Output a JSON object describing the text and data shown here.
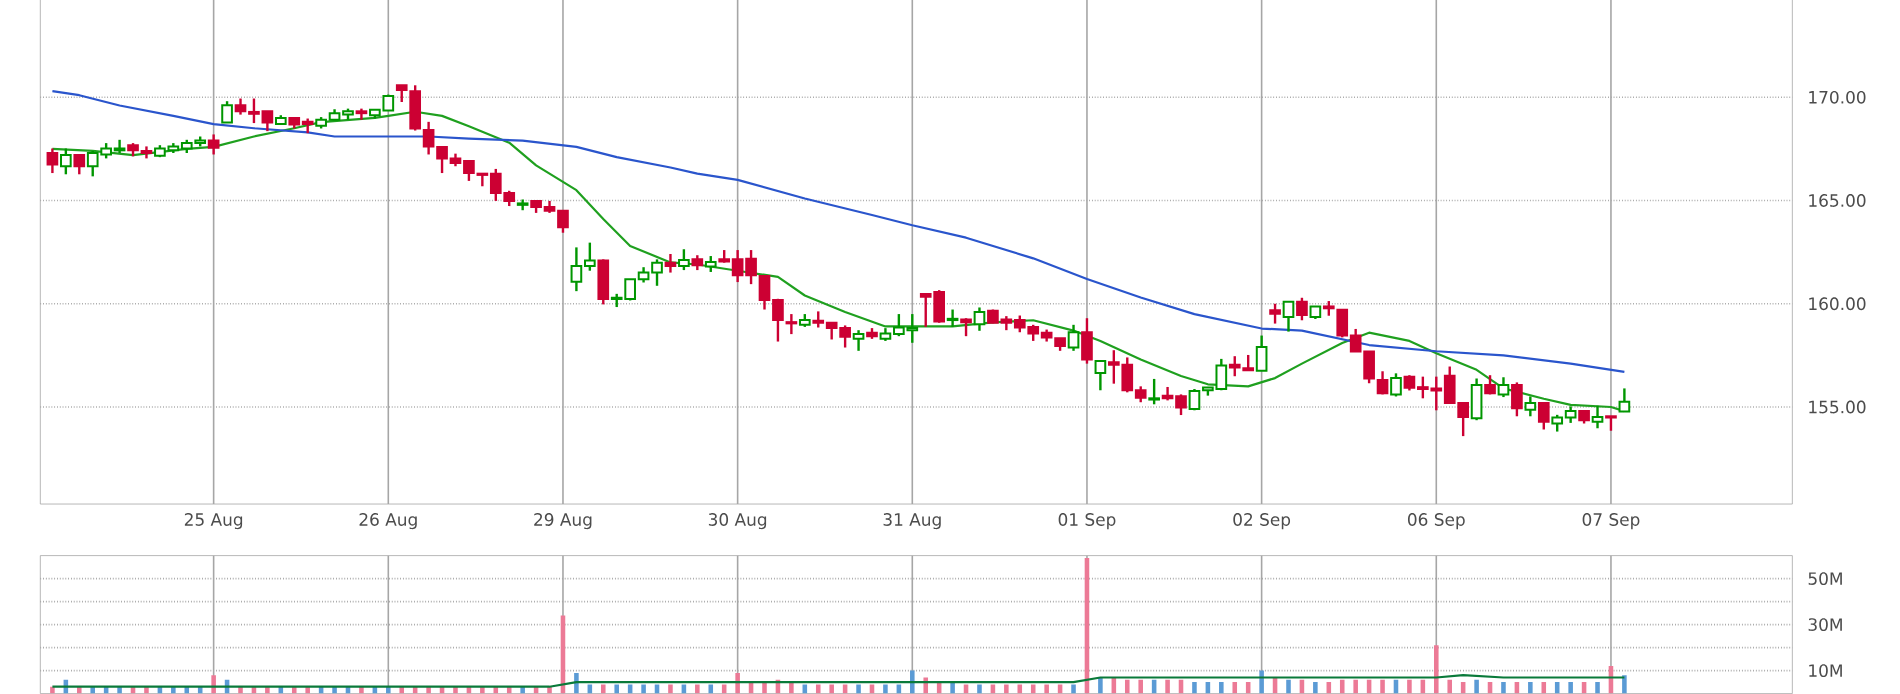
{
  "chart_data": [
    {
      "type": "candlestick",
      "categories": [
        null,
        null,
        null,
        null,
        null,
        null,
        null,
        null,
        null,
        null,
        null,
        null,
        "25 Aug",
        null,
        null,
        null,
        null,
        null,
        null,
        null,
        null,
        null,
        null,
        null,
        null,
        "26 Aug",
        null,
        null,
        null,
        null,
        null,
        null,
        null,
        null,
        null,
        null,
        null,
        null,
        "29 Aug",
        null,
        null,
        null,
        null,
        null,
        null,
        null,
        null,
        null,
        null,
        null,
        null,
        "30 Aug",
        null,
        null,
        null,
        null,
        null,
        null,
        null,
        null,
        null,
        null,
        null,
        null,
        "31 Aug",
        null,
        null,
        null,
        null,
        null,
        null,
        null,
        null,
        null,
        null,
        null,
        null,
        "01 Sep",
        null,
        null,
        null,
        null,
        null,
        null,
        null,
        null,
        null,
        null,
        null,
        null,
        "02 Sep",
        null,
        null,
        null,
        null,
        null,
        null,
        null,
        null,
        null,
        null,
        null,
        null,
        "06 Sep",
        null,
        null,
        null,
        null,
        null,
        null,
        null,
        null,
        null,
        null,
        null,
        null,
        "07 Sep",
        null,
        null,
        null,
        null,
        null,
        null,
        null,
        null,
        null,
        null,
        null,
        null,
        null
      ],
      "ohlc": [
        [
          167.3,
          167.52,
          166.33,
          166.75
        ],
        [
          166.66,
          167.52,
          166.27,
          167.2
        ],
        [
          167.2,
          167.2,
          166.27,
          166.66
        ],
        [
          166.66,
          167.4,
          166.17,
          167.3
        ],
        [
          167.23,
          167.78,
          167.04,
          167.52
        ],
        [
          167.43,
          167.94,
          167.3,
          167.52
        ],
        [
          167.68,
          167.78,
          167.14,
          167.43
        ],
        [
          167.4,
          167.62,
          167.04,
          167.3
        ],
        [
          167.17,
          167.68,
          167.1,
          167.52
        ],
        [
          167.43,
          167.78,
          167.3,
          167.62
        ],
        [
          167.52,
          167.94,
          167.3,
          167.78
        ],
        [
          167.78,
          168.1,
          167.62,
          167.91
        ],
        [
          167.91,
          168.2,
          167.23,
          167.56
        ],
        [
          168.78,
          169.81,
          168.78,
          169.61
        ],
        [
          169.61,
          169.94,
          169.16,
          169.32
        ],
        [
          169.29,
          169.94,
          168.75,
          169.2
        ],
        [
          169.32,
          169.32,
          168.36,
          168.78
        ],
        [
          168.71,
          169.13,
          168.71,
          169.0
        ],
        [
          169.0,
          169.0,
          168.49,
          168.68
        ],
        [
          168.81,
          168.97,
          168.26,
          168.71
        ],
        [
          168.62,
          169.04,
          168.49,
          168.91
        ],
        [
          168.91,
          169.42,
          168.91,
          169.23
        ],
        [
          169.16,
          169.45,
          168.91,
          169.32
        ],
        [
          169.32,
          169.45,
          168.91,
          169.23
        ],
        [
          169.13,
          169.39,
          168.97,
          169.39
        ],
        [
          169.36,
          170.13,
          169.36,
          170.06
        ],
        [
          170.58,
          170.58,
          169.77,
          170.35
        ],
        [
          170.29,
          170.58,
          168.39,
          168.49
        ],
        [
          168.42,
          168.81,
          167.23,
          167.62
        ],
        [
          167.59,
          167.59,
          166.33,
          167.04
        ],
        [
          167.04,
          167.27,
          166.66,
          166.82
        ],
        [
          166.91,
          166.91,
          165.95,
          166.33
        ],
        [
          166.3,
          166.3,
          165.69,
          166.24
        ],
        [
          166.3,
          166.53,
          164.98,
          165.37
        ],
        [
          165.37,
          165.47,
          164.73,
          164.98
        ],
        [
          164.79,
          165.05,
          164.53,
          164.86
        ],
        [
          164.98,
          164.98,
          164.4,
          164.69
        ],
        [
          164.69,
          164.98,
          164.4,
          164.5
        ],
        [
          164.5,
          164.5,
          163.44,
          163.7
        ],
        [
          161.06,
          162.73,
          160.61,
          161.83
        ],
        [
          161.83,
          162.96,
          161.6,
          162.09
        ],
        [
          162.09,
          162.15,
          159.97,
          160.23
        ],
        [
          160.23,
          160.48,
          159.84,
          160.29
        ],
        [
          160.23,
          161.19,
          160.16,
          161.19
        ],
        [
          161.19,
          161.77,
          161.03,
          161.51
        ],
        [
          161.51,
          162.15,
          160.87,
          161.99
        ],
        [
          161.99,
          162.41,
          161.51,
          161.83
        ],
        [
          161.83,
          162.64,
          161.63,
          162.12
        ],
        [
          162.15,
          162.35,
          161.63,
          161.86
        ],
        [
          161.8,
          162.31,
          161.54,
          162.02
        ],
        [
          162.15,
          162.6,
          161.99,
          162.05
        ],
        [
          162.15,
          162.6,
          161.05,
          161.38
        ],
        [
          162.18,
          162.6,
          160.95,
          161.38
        ],
        [
          161.34,
          161.34,
          159.72,
          160.18
        ],
        [
          160.18,
          160.24,
          158.17,
          159.21
        ],
        [
          159.11,
          159.5,
          158.53,
          159.05
        ],
        [
          158.98,
          159.5,
          158.88,
          159.21
        ],
        [
          159.18,
          159.63,
          158.85,
          159.08
        ],
        [
          159.08,
          159.08,
          158.27,
          158.82
        ],
        [
          158.82,
          158.95,
          157.88,
          158.4
        ],
        [
          158.3,
          158.72,
          157.72,
          158.53
        ],
        [
          158.59,
          158.82,
          158.3,
          158.43
        ],
        [
          158.3,
          158.82,
          158.2,
          158.56
        ],
        [
          158.53,
          159.5,
          158.43,
          158.85
        ],
        [
          158.72,
          159.5,
          158.11,
          158.82
        ],
        [
          160.47,
          160.47,
          158.88,
          160.34
        ],
        [
          160.57,
          160.66,
          159.08,
          159.14
        ],
        [
          159.21,
          159.72,
          158.88,
          159.27
        ],
        [
          159.24,
          159.3,
          158.43,
          159.11
        ],
        [
          159.01,
          159.82,
          158.69,
          159.6
        ],
        [
          159.66,
          159.72,
          159.05,
          159.08
        ],
        [
          159.24,
          159.4,
          158.72,
          159.08
        ],
        [
          159.21,
          159.43,
          158.62,
          158.85
        ],
        [
          158.88,
          158.98,
          158.2,
          158.56
        ],
        [
          158.59,
          158.75,
          158.17,
          158.37
        ],
        [
          158.33,
          158.33,
          157.72,
          157.95
        ],
        [
          157.88,
          158.98,
          157.72,
          158.62
        ],
        [
          158.62,
          159.3,
          157.1,
          157.3
        ],
        [
          156.65,
          157.23,
          155.81,
          157.23
        ],
        [
          157.17,
          157.75,
          156.13,
          157.04
        ],
        [
          157.04,
          157.4,
          155.71,
          155.81
        ],
        [
          155.81,
          156.0,
          155.23,
          155.45
        ],
        [
          155.36,
          156.36,
          155.13,
          155.42
        ],
        [
          155.55,
          155.97,
          155.32,
          155.42
        ],
        [
          155.52,
          155.61,
          154.61,
          154.97
        ],
        [
          154.9,
          155.87,
          154.84,
          155.78
        ],
        [
          155.81,
          155.97,
          155.55,
          155.94
        ],
        [
          155.87,
          157.33,
          155.81,
          157.01
        ],
        [
          157.04,
          157.46,
          156.49,
          156.91
        ],
        [
          156.88,
          157.52,
          156.75,
          156.78
        ],
        [
          156.75,
          158.46,
          156.75,
          157.91
        ],
        [
          159.68,
          160.0,
          159.04,
          159.52
        ],
        [
          159.36,
          160.1,
          158.65,
          160.1
        ],
        [
          160.1,
          160.29,
          159.2,
          159.46
        ],
        [
          159.36,
          159.87,
          159.26,
          159.87
        ],
        [
          159.87,
          160.13,
          159.42,
          159.78
        ],
        [
          159.71,
          159.71,
          158.37,
          158.46
        ],
        [
          158.46,
          158.78,
          157.69,
          157.69
        ],
        [
          157.69,
          157.69,
          156.15,
          156.38
        ],
        [
          156.31,
          156.73,
          155.61,
          155.67
        ],
        [
          155.61,
          156.63,
          155.51,
          156.41
        ],
        [
          156.47,
          156.54,
          155.8,
          155.93
        ],
        [
          155.96,
          156.47,
          155.42,
          155.87
        ],
        [
          155.9,
          156.47,
          154.84,
          155.8
        ],
        [
          156.51,
          156.96,
          155.19,
          155.19
        ],
        [
          155.19,
          155.19,
          153.59,
          154.52
        ],
        [
          154.46,
          156.38,
          154.36,
          156.06
        ],
        [
          156.06,
          156.54,
          155.61,
          155.67
        ],
        [
          155.61,
          156.44,
          155.48,
          156.06
        ],
        [
          156.06,
          156.19,
          154.55,
          154.94
        ],
        [
          154.87,
          155.51,
          154.55,
          155.19
        ],
        [
          155.19,
          155.19,
          153.91,
          154.29
        ],
        [
          154.2,
          154.62,
          153.81,
          154.49
        ],
        [
          154.49,
          155.03,
          154.23,
          154.81
        ],
        [
          154.81,
          154.81,
          154.2,
          154.36
        ],
        [
          154.29,
          155.06,
          153.97,
          154.52
        ],
        [
          154.55,
          154.55,
          153.85,
          154.49
        ],
        [
          154.78,
          155.9,
          154.78,
          155.26
        ],
        null,
        null,
        null,
        null,
        null,
        null,
        null,
        null,
        null,
        null,
        null,
        null
      ],
      "series": [
        {
          "type": "line",
          "color": "#1fa01f",
          "values": [
            167.5,
            null,
            null,
            167.4,
            null,
            null,
            167.2,
            null,
            null,
            null,
            167.5,
            null,
            167.6,
            null,
            null,
            168.1,
            null,
            null,
            168.5,
            null,
            168.8,
            null,
            null,
            null,
            169.0,
            169.1,
            null,
            169.3,
            null,
            169.1,
            null,
            168.6,
            null,
            null,
            167.8,
            null,
            166.7,
            null,
            null,
            165.5,
            null,
            164.1,
            null,
            162.8,
            null,
            null,
            162.0,
            null,
            161.9,
            null,
            null,
            161.6,
            null,
            null,
            161.3,
            null,
            160.4,
            null,
            null,
            159.6,
            null,
            null,
            158.9,
            null,
            158.9,
            null,
            null,
            158.9,
            null,
            null,
            159.1,
            null,
            null,
            159.2,
            null,
            null,
            158.7,
            null,
            158.2,
            null,
            null,
            157.3,
            null,
            null,
            156.5,
            null,
            156.1,
            null,
            null,
            156.0,
            null,
            156.4,
            null,
            157.1,
            null,
            null,
            158.1,
            null,
            158.6,
            null,
            null,
            158.2,
            null,
            157.6,
            null,
            null,
            156.8,
            null,
            155.9,
            null,
            null,
            155.4,
            null,
            155.1,
            null,
            null,
            155.0,
            154.8,
            null,
            null,
            null,
            null,
            null,
            null,
            null,
            null,
            null,
            null,
            null,
            null
          ]
        },
        {
          "type": "line",
          "color": "#2a55cc",
          "values": [
            170.3,
            null,
            170.1,
            null,
            null,
            169.6,
            null,
            null,
            null,
            169.1,
            null,
            null,
            168.7,
            null,
            null,
            168.5,
            null,
            null,
            null,
            168.3,
            null,
            168.1,
            null,
            null,
            null,
            168.1,
            null,
            null,
            168.1,
            null,
            null,
            168.0,
            null,
            null,
            null,
            167.9,
            null,
            null,
            null,
            167.6,
            null,
            null,
            167.1,
            null,
            null,
            null,
            166.6,
            null,
            166.3,
            null,
            null,
            166.0,
            null,
            null,
            null,
            null,
            165.1,
            null,
            null,
            null,
            null,
            164.3,
            null,
            null,
            163.8,
            null,
            null,
            null,
            163.2,
            null,
            null,
            null,
            null,
            162.2,
            null,
            null,
            null,
            161.2,
            null,
            null,
            null,
            160.3,
            null,
            null,
            null,
            159.5,
            null,
            null,
            null,
            null,
            158.8,
            null,
            null,
            158.7,
            null,
            null,
            null,
            null,
            158.0,
            null,
            null,
            null,
            null,
            157.7,
            null,
            null,
            null,
            null,
            157.5,
            null,
            null,
            null,
            null,
            157.1,
            null,
            null,
            null,
            156.7,
            null,
            null,
            null,
            null,
            null,
            null,
            null,
            null,
            null,
            null,
            null,
            null
          ]
        }
      ],
      "ylim": [
        150.3,
        175.0
      ],
      "yticks": [
        {
          "value": 155,
          "label": "155.00"
        },
        {
          "value": 160,
          "label": "160.00"
        },
        {
          "value": 165,
          "label": "165.00"
        },
        {
          "value": 170,
          "label": "170.00"
        }
      ],
      "grid": true
    },
    {
      "type": "bar",
      "categories": [
        null,
        null,
        null,
        null,
        null,
        null,
        null,
        null,
        null,
        null,
        null,
        null,
        null,
        null,
        null,
        null,
        null,
        null,
        null,
        null,
        null,
        null,
        null,
        null,
        null,
        null,
        null,
        null,
        null,
        null,
        null,
        null,
        null,
        null,
        null,
        null,
        null,
        null,
        null,
        null,
        null,
        null,
        null,
        null,
        null,
        null,
        null,
        null,
        null,
        null,
        null,
        null,
        null,
        null,
        null,
        null,
        null,
        null,
        null,
        null,
        null,
        null,
        null,
        null,
        null,
        null,
        null,
        null,
        null,
        null,
        null,
        null,
        null,
        null,
        null,
        null,
        null,
        null,
        null,
        null,
        null,
        null,
        null,
        null,
        null,
        null,
        null,
        null,
        null,
        null,
        null,
        null,
        null,
        null,
        null,
        null,
        null,
        null,
        null,
        null,
        null,
        null,
        null,
        null,
        null,
        null,
        null,
        null,
        null,
        null,
        null,
        null,
        null,
        null,
        null,
        null,
        null,
        null,
        null,
        null,
        null,
        null,
        null,
        null,
        null,
        null,
        null,
        null,
        null,
        null
      ],
      "series": [
        {
          "type": "bar",
          "values": [
            3,
            6,
            3,
            3,
            3,
            3,
            3,
            3,
            3,
            3,
            3,
            3,
            8,
            6,
            3,
            3,
            3,
            3,
            3,
            3,
            3,
            3,
            3,
            3,
            3,
            3,
            3,
            3,
            3,
            3,
            3,
            3,
            3,
            3,
            3,
            3,
            3,
            3,
            34,
            9,
            4,
            4,
            4,
            4,
            4,
            4,
            4,
            4,
            4,
            4,
            4,
            9,
            5,
            5,
            6,
            5,
            4,
            4,
            4,
            4,
            4,
            4,
            4,
            4,
            10,
            7,
            5,
            5,
            4,
            4,
            4,
            4,
            4,
            4,
            4,
            4,
            4,
            59,
            7,
            7,
            6,
            6,
            6,
            6,
            6,
            5,
            5,
            5,
            5,
            5,
            10,
            7,
            6,
            6,
            5,
            5,
            6,
            6,
            6,
            6,
            6,
            6,
            6,
            21,
            6,
            5,
            6,
            5,
            5,
            5,
            5,
            5,
            5,
            5,
            5,
            5,
            12,
            8,
            null,
            null,
            null,
            null,
            null,
            null,
            null,
            null,
            null,
            null,
            null,
            null
          ],
          "colors": [
            "#ec7a96",
            "#5b9bd5",
            "#ec7a96",
            "#5b9bd5",
            "#5b9bd5",
            "#5b9bd5",
            "#ec7a96",
            "#ec7a96",
            "#5b9bd5",
            "#5b9bd5",
            "#5b9bd5",
            "#5b9bd5",
            "#ec7a96",
            "#5b9bd5",
            "#ec7a96",
            "#ec7a96",
            "#ec7a96",
            "#5b9bd5",
            "#ec7a96",
            "#ec7a96",
            "#5b9bd5",
            "#5b9bd5",
            "#5b9bd5",
            "#ec7a96",
            "#5b9bd5",
            "#5b9bd5",
            "#ec7a96",
            "#ec7a96",
            "#ec7a96",
            "#ec7a96",
            "#ec7a96",
            "#ec7a96",
            "#ec7a96",
            "#ec7a96",
            "#ec7a96",
            "#5b9bd5",
            "#ec7a96",
            "#ec7a96",
            "#ec7a96",
            "#5b9bd5",
            "#5b9bd5",
            "#ec7a96",
            "#5b9bd5",
            "#5b9bd5",
            "#5b9bd5",
            "#5b9bd5",
            "#ec7a96",
            "#5b9bd5",
            "#ec7a96",
            "#5b9bd5",
            "#ec7a96",
            "#ec7a96",
            "#ec7a96",
            "#ec7a96",
            "#ec7a96",
            "#ec7a96",
            "#5b9bd5",
            "#ec7a96",
            "#ec7a96",
            "#ec7a96",
            "#5b9bd5",
            "#ec7a96",
            "#5b9bd5",
            "#5b9bd5",
            "#5b9bd5",
            "#ec7a96",
            "#ec7a96",
            "#5b9bd5",
            "#ec7a96",
            "#5b9bd5",
            "#ec7a96",
            "#ec7a96",
            "#ec7a96",
            "#ec7a96",
            "#ec7a96",
            "#ec7a96",
            "#5b9bd5",
            "#ec7a96",
            "#5b9bd5",
            "#ec7a96",
            "#ec7a96",
            "#ec7a96",
            "#5b9bd5",
            "#ec7a96",
            "#ec7a96",
            "#5b9bd5",
            "#5b9bd5",
            "#5b9bd5",
            "#ec7a96",
            "#ec7a96",
            "#5b9bd5",
            "#ec7a96",
            "#5b9bd5",
            "#ec7a96",
            "#5b9bd5",
            "#ec7a96",
            "#ec7a96",
            "#ec7a96",
            "#ec7a96",
            "#ec7a96",
            "#5b9bd5",
            "#ec7a96",
            "#ec7a96",
            "#ec7a96",
            "#ec7a96",
            "#ec7a96",
            "#5b9bd5",
            "#ec7a96",
            "#5b9bd5",
            "#ec7a96",
            "#5b9bd5",
            "#ec7a96",
            "#5b9bd5",
            "#5b9bd5",
            "#ec7a96",
            "#5b9bd5",
            "#ec7a96",
            "#5b9bd5",
            null,
            null,
            null,
            null,
            null,
            null,
            null,
            null,
            null,
            null,
            null,
            null
          ]
        },
        {
          "type": "line",
          "color": "#0a7a3a",
          "values": [
            3,
            null,
            null,
            null,
            null,
            null,
            null,
            null,
            null,
            null,
            null,
            null,
            null,
            null,
            null,
            null,
            null,
            null,
            null,
            null,
            null,
            null,
            null,
            null,
            null,
            null,
            null,
            null,
            null,
            null,
            null,
            null,
            null,
            null,
            null,
            null,
            null,
            3,
            null,
            5,
            null,
            null,
            null,
            null,
            null,
            null,
            null,
            null,
            null,
            null,
            null,
            null,
            null,
            null,
            null,
            null,
            null,
            null,
            null,
            null,
            null,
            null,
            null,
            null,
            null,
            null,
            null,
            null,
            null,
            null,
            null,
            null,
            null,
            null,
            null,
            null,
            5,
            null,
            7,
            null,
            null,
            null,
            null,
            null,
            null,
            null,
            null,
            null,
            null,
            null,
            null,
            null,
            null,
            null,
            null,
            null,
            null,
            null,
            null,
            null,
            null,
            null,
            null,
            7,
            null,
            8,
            null,
            null,
            7,
            null,
            null,
            null,
            null,
            null,
            null,
            null,
            null,
            7,
            null,
            null,
            null,
            null,
            null,
            null,
            null,
            null,
            null,
            null,
            null,
            null
          ]
        }
      ],
      "ylim": [
        0,
        60
      ],
      "yticks": [
        {
          "value": 10,
          "label": "10M"
        },
        {
          "value": 20,
          "label": null
        },
        {
          "value": 30,
          "label": "30M"
        },
        {
          "value": 40,
          "label": null
        },
        {
          "value": 50,
          "label": "50M"
        }
      ],
      "tick_labels": "y",
      "grid": true
    }
  ]
}
